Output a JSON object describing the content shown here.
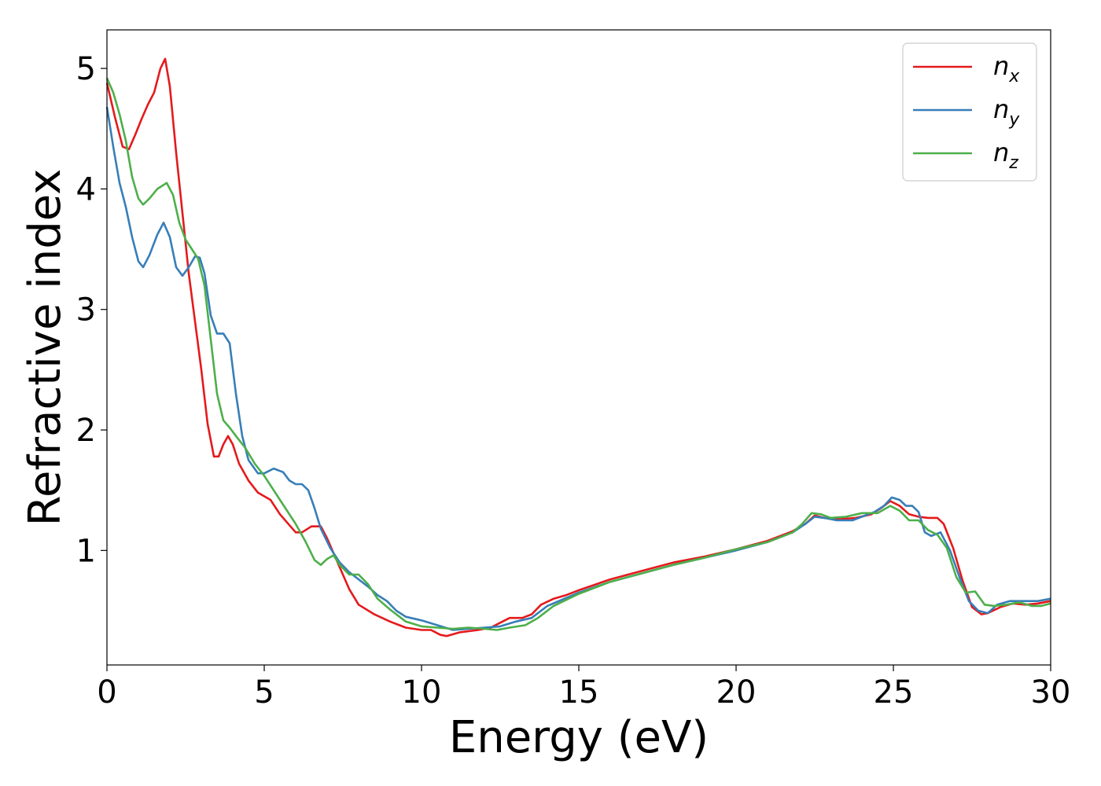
{
  "chart_data": {
    "type": "line",
    "title": "",
    "xlabel": "Energy (eV)",
    "ylabel": "Refractive index",
    "xlim": [
      0,
      30
    ],
    "ylim": [
      0.05,
      5.32
    ],
    "xticks": [
      "0",
      "5",
      "10",
      "15",
      "20",
      "25",
      "30"
    ],
    "yticks": [
      "1",
      "2",
      "3",
      "4",
      "5"
    ],
    "grid": false,
    "legend_position": "top-right",
    "series": [
      {
        "name": "n_x",
        "label_base": "n",
        "label_sub": "x",
        "color": "#e41a1c",
        "points": [
          [
            0,
            4.88
          ],
          [
            0.25,
            4.6
          ],
          [
            0.5,
            4.35
          ],
          [
            0.7,
            4.33
          ],
          [
            0.9,
            4.45
          ],
          [
            1.1,
            4.58
          ],
          [
            1.3,
            4.7
          ],
          [
            1.5,
            4.8
          ],
          [
            1.7,
            5.0
          ],
          [
            1.85,
            5.08
          ],
          [
            2.0,
            4.85
          ],
          [
            2.2,
            4.3
          ],
          [
            2.4,
            3.8
          ],
          [
            2.6,
            3.3
          ],
          [
            2.8,
            2.9
          ],
          [
            3.0,
            2.5
          ],
          [
            3.2,
            2.05
          ],
          [
            3.4,
            1.78
          ],
          [
            3.55,
            1.78
          ],
          [
            3.7,
            1.88
          ],
          [
            3.85,
            1.95
          ],
          [
            4.0,
            1.88
          ],
          [
            4.2,
            1.72
          ],
          [
            4.5,
            1.58
          ],
          [
            4.8,
            1.48
          ],
          [
            5.2,
            1.42
          ],
          [
            5.5,
            1.3
          ],
          [
            6.0,
            1.15
          ],
          [
            6.2,
            1.15
          ],
          [
            6.5,
            1.2
          ],
          [
            6.8,
            1.2
          ],
          [
            7.0,
            1.1
          ],
          [
            7.3,
            0.92
          ],
          [
            7.7,
            0.68
          ],
          [
            8.0,
            0.55
          ],
          [
            8.5,
            0.47
          ],
          [
            9.0,
            0.41
          ],
          [
            9.5,
            0.36
          ],
          [
            10.0,
            0.34
          ],
          [
            10.3,
            0.34
          ],
          [
            10.6,
            0.3
          ],
          [
            10.8,
            0.29
          ],
          [
            11.2,
            0.32
          ],
          [
            11.8,
            0.34
          ],
          [
            12.2,
            0.36
          ],
          [
            12.5,
            0.4
          ],
          [
            12.8,
            0.44
          ],
          [
            13.2,
            0.44
          ],
          [
            13.5,
            0.47
          ],
          [
            13.8,
            0.55
          ],
          [
            14.2,
            0.6
          ],
          [
            14.6,
            0.63
          ],
          [
            15.0,
            0.67
          ],
          [
            16.0,
            0.76
          ],
          [
            17.0,
            0.83
          ],
          [
            18.0,
            0.9
          ],
          [
            19.0,
            0.95
          ],
          [
            20.0,
            1.01
          ],
          [
            21.0,
            1.08
          ],
          [
            21.8,
            1.16
          ],
          [
            22.2,
            1.22
          ],
          [
            22.5,
            1.29
          ],
          [
            22.8,
            1.27
          ],
          [
            23.3,
            1.26
          ],
          [
            23.8,
            1.27
          ],
          [
            24.3,
            1.3
          ],
          [
            24.6,
            1.35
          ],
          [
            24.9,
            1.41
          ],
          [
            25.2,
            1.37
          ],
          [
            25.5,
            1.3
          ],
          [
            25.8,
            1.28
          ],
          [
            26.1,
            1.27
          ],
          [
            26.4,
            1.27
          ],
          [
            26.6,
            1.22
          ],
          [
            26.9,
            1.02
          ],
          [
            27.2,
            0.75
          ],
          [
            27.5,
            0.53
          ],
          [
            27.8,
            0.47
          ],
          [
            28.0,
            0.48
          ],
          [
            28.4,
            0.53
          ],
          [
            28.8,
            0.56
          ],
          [
            29.2,
            0.55
          ],
          [
            29.6,
            0.56
          ],
          [
            30.0,
            0.58
          ]
        ]
      },
      {
        "name": "n_y",
        "label_base": "n",
        "label_sub": "y",
        "color": "#377eb8",
        "points": [
          [
            0,
            4.68
          ],
          [
            0.2,
            4.35
          ],
          [
            0.4,
            4.05
          ],
          [
            0.6,
            3.85
          ],
          [
            0.8,
            3.6
          ],
          [
            1.0,
            3.4
          ],
          [
            1.15,
            3.35
          ],
          [
            1.35,
            3.45
          ],
          [
            1.6,
            3.62
          ],
          [
            1.8,
            3.72
          ],
          [
            2.0,
            3.6
          ],
          [
            2.2,
            3.35
          ],
          [
            2.4,
            3.28
          ],
          [
            2.6,
            3.35
          ],
          [
            2.8,
            3.44
          ],
          [
            2.95,
            3.43
          ],
          [
            3.1,
            3.3
          ],
          [
            3.3,
            2.95
          ],
          [
            3.5,
            2.8
          ],
          [
            3.7,
            2.8
          ],
          [
            3.9,
            2.72
          ],
          [
            4.1,
            2.3
          ],
          [
            4.3,
            1.95
          ],
          [
            4.5,
            1.75
          ],
          [
            4.8,
            1.64
          ],
          [
            5.0,
            1.64
          ],
          [
            5.3,
            1.68
          ],
          [
            5.6,
            1.65
          ],
          [
            5.8,
            1.58
          ],
          [
            6.0,
            1.55
          ],
          [
            6.2,
            1.55
          ],
          [
            6.4,
            1.5
          ],
          [
            6.6,
            1.35
          ],
          [
            6.8,
            1.18
          ],
          [
            7.1,
            1.02
          ],
          [
            7.4,
            0.9
          ],
          [
            7.7,
            0.82
          ],
          [
            8.0,
            0.76
          ],
          [
            8.3,
            0.7
          ],
          [
            8.6,
            0.63
          ],
          [
            8.9,
            0.58
          ],
          [
            9.2,
            0.5
          ],
          [
            9.5,
            0.45
          ],
          [
            10.0,
            0.42
          ],
          [
            10.5,
            0.38
          ],
          [
            11.0,
            0.34
          ],
          [
            11.5,
            0.35
          ],
          [
            12.0,
            0.36
          ],
          [
            12.5,
            0.37
          ],
          [
            13.0,
            0.41
          ],
          [
            13.5,
            0.44
          ],
          [
            14.0,
            0.54
          ],
          [
            15.0,
            0.65
          ],
          [
            16.0,
            0.74
          ],
          [
            17.0,
            0.81
          ],
          [
            18.0,
            0.88
          ],
          [
            19.0,
            0.94
          ],
          [
            20.0,
            1.0
          ],
          [
            21.0,
            1.07
          ],
          [
            21.8,
            1.15
          ],
          [
            22.2,
            1.22
          ],
          [
            22.5,
            1.28
          ],
          [
            22.8,
            1.27
          ],
          [
            23.2,
            1.25
          ],
          [
            23.7,
            1.25
          ],
          [
            24.0,
            1.28
          ],
          [
            24.4,
            1.32
          ],
          [
            24.7,
            1.37
          ],
          [
            24.95,
            1.44
          ],
          [
            25.2,
            1.42
          ],
          [
            25.4,
            1.37
          ],
          [
            25.6,
            1.37
          ],
          [
            25.8,
            1.32
          ],
          [
            26.0,
            1.15
          ],
          [
            26.2,
            1.12
          ],
          [
            26.5,
            1.15
          ],
          [
            26.8,
            1.0
          ],
          [
            27.1,
            0.78
          ],
          [
            27.4,
            0.58
          ],
          [
            27.7,
            0.5
          ],
          [
            28.0,
            0.48
          ],
          [
            28.3,
            0.55
          ],
          [
            28.7,
            0.58
          ],
          [
            29.2,
            0.58
          ],
          [
            29.6,
            0.58
          ],
          [
            30.0,
            0.6
          ]
        ]
      },
      {
        "name": "n_z",
        "label_base": "n",
        "label_sub": "z",
        "color": "#4daf4a",
        "points": [
          [
            0,
            4.92
          ],
          [
            0.2,
            4.8
          ],
          [
            0.4,
            4.62
          ],
          [
            0.6,
            4.4
          ],
          [
            0.8,
            4.1
          ],
          [
            1.0,
            3.92
          ],
          [
            1.15,
            3.87
          ],
          [
            1.35,
            3.92
          ],
          [
            1.6,
            4.0
          ],
          [
            1.9,
            4.05
          ],
          [
            2.1,
            3.95
          ],
          [
            2.3,
            3.72
          ],
          [
            2.5,
            3.58
          ],
          [
            2.7,
            3.5
          ],
          [
            2.9,
            3.42
          ],
          [
            3.1,
            3.2
          ],
          [
            3.3,
            2.75
          ],
          [
            3.5,
            2.3
          ],
          [
            3.7,
            2.08
          ],
          [
            3.9,
            2.02
          ],
          [
            4.1,
            1.95
          ],
          [
            4.4,
            1.85
          ],
          [
            4.7,
            1.72
          ],
          [
            5.0,
            1.62
          ],
          [
            5.5,
            1.42
          ],
          [
            6.0,
            1.22
          ],
          [
            6.3,
            1.08
          ],
          [
            6.6,
            0.92
          ],
          [
            6.8,
            0.88
          ],
          [
            7.0,
            0.93
          ],
          [
            7.2,
            0.96
          ],
          [
            7.4,
            0.88
          ],
          [
            7.7,
            0.8
          ],
          [
            8.0,
            0.8
          ],
          [
            8.3,
            0.72
          ],
          [
            8.6,
            0.6
          ],
          [
            9.0,
            0.51
          ],
          [
            9.5,
            0.41
          ],
          [
            10.0,
            0.37
          ],
          [
            10.5,
            0.36
          ],
          [
            11.0,
            0.35
          ],
          [
            11.5,
            0.36
          ],
          [
            12.0,
            0.35
          ],
          [
            12.4,
            0.34
          ],
          [
            12.8,
            0.36
          ],
          [
            13.3,
            0.38
          ],
          [
            13.7,
            0.44
          ],
          [
            14.2,
            0.54
          ],
          [
            15.0,
            0.64
          ],
          [
            16.0,
            0.74
          ],
          [
            17.0,
            0.81
          ],
          [
            18.0,
            0.88
          ],
          [
            19.0,
            0.94
          ],
          [
            20.0,
            1.01
          ],
          [
            21.0,
            1.07
          ],
          [
            21.8,
            1.15
          ],
          [
            22.1,
            1.22
          ],
          [
            22.4,
            1.31
          ],
          [
            22.7,
            1.3
          ],
          [
            23.0,
            1.27
          ],
          [
            23.5,
            1.28
          ],
          [
            24.0,
            1.31
          ],
          [
            24.5,
            1.31
          ],
          [
            24.9,
            1.37
          ],
          [
            25.2,
            1.33
          ],
          [
            25.5,
            1.25
          ],
          [
            25.8,
            1.25
          ],
          [
            26.1,
            1.17
          ],
          [
            26.4,
            1.13
          ],
          [
            26.7,
            1.02
          ],
          [
            27.0,
            0.78
          ],
          [
            27.3,
            0.65
          ],
          [
            27.6,
            0.66
          ],
          [
            27.9,
            0.55
          ],
          [
            28.2,
            0.54
          ],
          [
            28.6,
            0.55
          ],
          [
            29.0,
            0.57
          ],
          [
            29.4,
            0.54
          ],
          [
            29.7,
            0.54
          ],
          [
            30.0,
            0.56
          ]
        ]
      }
    ]
  }
}
